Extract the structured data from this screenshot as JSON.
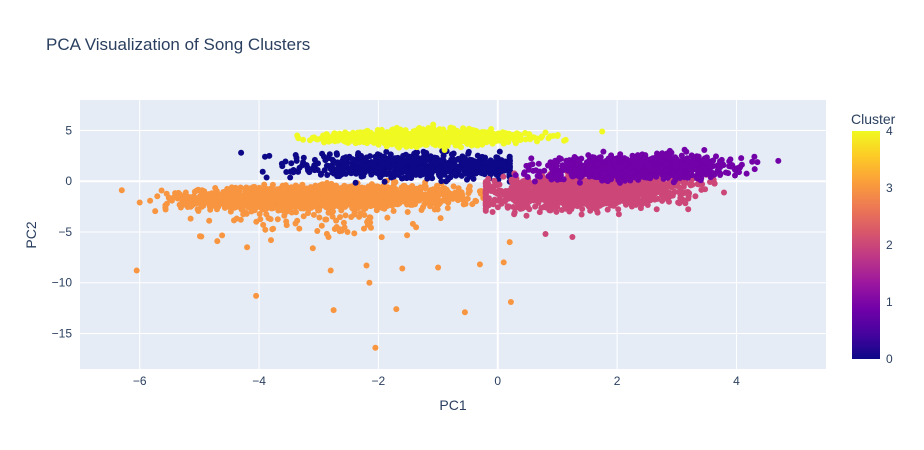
{
  "chart_data": {
    "type": "scatter",
    "title": "PCA Visualization of Song Clusters",
    "xlabel": "PC1",
    "ylabel": "PC2",
    "xlim": [
      -7,
      5.5
    ],
    "ylim": [
      -18.5,
      8
    ],
    "xticks": [
      -6,
      -4,
      -2,
      0,
      2,
      4
    ],
    "yticks": [
      -15,
      -10,
      -5,
      0,
      5
    ],
    "grid": true,
    "colorbar": {
      "title": "Cluster",
      "range": [
        0,
        4
      ],
      "ticks": [
        0,
        1,
        2,
        3,
        4
      ],
      "colorscale": [
        "#0d0887",
        "#46039f",
        "#7201a8",
        "#9c179e",
        "#bd3786",
        "#d8576b",
        "#ed7953",
        "#fb9f3a",
        "#fdca26",
        "#f0f921"
      ]
    },
    "clusters": [
      {
        "cluster": 0,
        "color": "#0d0887",
        "center": [
          -1.3,
          1.5
        ],
        "x_range": [
          -4.4,
          0.2
        ],
        "y_range": [
          -0.5,
          3.2
        ]
      },
      {
        "cluster": 1,
        "color": "#7201a8",
        "center": [
          2.3,
          1.4
        ],
        "x_range": [
          0.3,
          4.7
        ],
        "y_range": [
          -0.5,
          3.3
        ]
      },
      {
        "cluster": 2,
        "color": "#cc4778",
        "center": [
          1.5,
          -1.0
        ],
        "x_range": [
          -0.2,
          4.3
        ],
        "y_range": [
          -3.5,
          1.8
        ]
      },
      {
        "cluster": 3,
        "color": "#f89540",
        "center": [
          -3.0,
          -1.6
        ],
        "x_range": [
          -6.3,
          0.0
        ],
        "y_range": [
          -7.0,
          2.5
        ]
      },
      {
        "cluster": 4,
        "color": "#f0f921",
        "center": [
          -1.2,
          4.3
        ],
        "x_range": [
          -3.5,
          1.6
        ],
        "y_range": [
          2.3,
          6.0
        ]
      }
    ],
    "outliers": [
      {
        "x": -6.05,
        "y": -8.8,
        "cluster": 3
      },
      {
        "x": -4.05,
        "y": -11.3,
        "cluster": 3
      },
      {
        "x": -2.75,
        "y": -12.7,
        "cluster": 3
      },
      {
        "x": -2.15,
        "y": -10.0,
        "cluster": 3
      },
      {
        "x": -2.05,
        "y": -16.4,
        "cluster": 3
      },
      {
        "x": -1.7,
        "y": -12.6,
        "cluster": 3
      },
      {
        "x": -0.55,
        "y": -12.9,
        "cluster": 3
      },
      {
        "x": 0.22,
        "y": -11.9,
        "cluster": 3
      },
      {
        "x": -3.1,
        "y": -6.6,
        "cluster": 3
      },
      {
        "x": -2.8,
        "y": -8.8,
        "cluster": 3
      },
      {
        "x": -2.2,
        "y": -8.3,
        "cluster": 3
      },
      {
        "x": -1.6,
        "y": -8.6,
        "cluster": 3
      },
      {
        "x": -1.0,
        "y": -8.5,
        "cluster": 3
      },
      {
        "x": -0.3,
        "y": -8.2,
        "cluster": 3
      },
      {
        "x": 0.1,
        "y": -8.0,
        "cluster": 3
      },
      {
        "x": 0.2,
        "y": -6.0,
        "cluster": 3
      },
      {
        "x": -3.8,
        "y": -5.8,
        "cluster": 3
      },
      {
        "x": -4.7,
        "y": -5.9,
        "cluster": 3
      },
      {
        "x": -4.2,
        "y": -6.5,
        "cluster": 3
      },
      {
        "x": -6.0,
        "y": -2.1,
        "cluster": 3
      },
      {
        "x": -6.3,
        "y": -0.9,
        "cluster": 3
      },
      {
        "x": 1.25,
        "y": -5.5,
        "cluster": 2
      },
      {
        "x": 0.8,
        "y": -5.2,
        "cluster": 2
      },
      {
        "x": 4.7,
        "y": 2.0,
        "cluster": 1
      },
      {
        "x": 4.3,
        "y": 2.4,
        "cluster": 1
      },
      {
        "x": 0.8,
        "y": 4.8,
        "cluster": 4
      },
      {
        "x": 1.75,
        "y": 4.9,
        "cluster": 4
      },
      {
        "x": -4.3,
        "y": 2.8,
        "cluster": 0
      },
      {
        "x": -3.9,
        "y": 2.4,
        "cluster": 0
      }
    ]
  }
}
